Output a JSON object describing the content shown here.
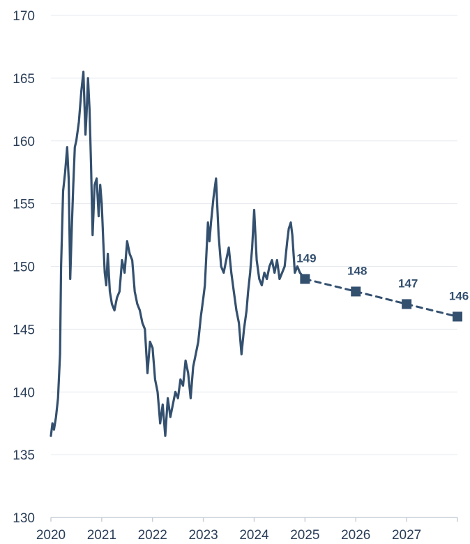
{
  "colors": {
    "series": "#34506f",
    "grid": "#e6eaef",
    "axis": "#c8cfd8",
    "text": "#2a3d57"
  },
  "chart_data": {
    "type": "line",
    "title": "",
    "xlabel": "",
    "ylabel": "",
    "xlim": [
      2020,
      2028
    ],
    "ylim": [
      130,
      170
    ],
    "yticks": [
      130,
      135,
      140,
      145,
      150,
      155,
      160,
      165,
      170
    ],
    "xtick_labels": [
      "2020",
      "2021",
      "2022",
      "2023",
      "2024",
      "2025",
      "2026",
      "2027"
    ],
    "grid": true,
    "legend": "none",
    "series": [
      {
        "style": "solid",
        "x": [
          2020.0,
          2020.03,
          2020.06,
          2020.1,
          2020.14,
          2020.18,
          2020.2,
          2020.24,
          2020.28,
          2020.32,
          2020.35,
          2020.38,
          2020.41,
          2020.44,
          2020.47,
          2020.5,
          2020.55,
          2020.6,
          2020.64,
          2020.68,
          2020.7,
          2020.73,
          2020.76,
          2020.79,
          2020.82,
          2020.86,
          2020.9,
          2020.94,
          2020.97,
          2021.0,
          2021.03,
          2021.06,
          2021.09,
          2021.12,
          2021.16,
          2021.2,
          2021.25,
          2021.3,
          2021.35,
          2021.4,
          2021.45,
          2021.5,
          2021.55,
          2021.6,
          2021.65,
          2021.7,
          2021.75,
          2021.8,
          2021.85,
          2021.9,
          2021.95,
          2022.0,
          2022.05,
          2022.1,
          2022.15,
          2022.2,
          2022.25,
          2022.3,
          2022.35,
          2022.4,
          2022.45,
          2022.5,
          2022.55,
          2022.6,
          2022.65,
          2022.7,
          2022.75,
          2022.8,
          2022.85,
          2022.9,
          2022.95,
          2023.0,
          2023.03,
          2023.06,
          2023.09,
          2023.12,
          2023.15,
          2023.2,
          2023.25,
          2023.3,
          2023.35,
          2023.4,
          2023.45,
          2023.5,
          2023.55,
          2023.6,
          2023.65,
          2023.7,
          2023.75,
          2023.8,
          2023.85,
          2023.88,
          2023.92,
          2023.96,
          2024.0,
          2024.05,
          2024.1,
          2024.15,
          2024.2,
          2024.25,
          2024.3,
          2024.35,
          2024.4,
          2024.45,
          2024.5,
          2024.55,
          2024.6,
          2024.65,
          2024.68,
          2024.72,
          2024.75,
          2024.8,
          2024.85,
          2024.9,
          2025.0
        ],
        "values": [
          136.5,
          137.5,
          137.0,
          138.0,
          139.5,
          143.0,
          150.0,
          156.0,
          157.5,
          159.5,
          157.0,
          149.0,
          153.0,
          156.5,
          159.5,
          160.0,
          161.5,
          164.0,
          165.5,
          160.5,
          162.0,
          165.0,
          162.5,
          158.0,
          152.5,
          156.5,
          157.0,
          154.0,
          156.5,
          155.0,
          152.0,
          149.5,
          148.5,
          151.0,
          148.0,
          147.0,
          146.5,
          147.5,
          148.0,
          150.5,
          149.5,
          152.0,
          151.0,
          150.5,
          148.0,
          147.0,
          146.5,
          145.5,
          145.0,
          141.5,
          144.0,
          143.5,
          141.0,
          140.0,
          137.5,
          139.0,
          136.5,
          139.5,
          138.0,
          139.0,
          140.0,
          139.5,
          141.0,
          140.5,
          142.5,
          141.5,
          139.5,
          142.0,
          143.0,
          144.0,
          146.0,
          147.5,
          148.5,
          151.0,
          153.5,
          152.0,
          153.5,
          155.5,
          157.0,
          152.5,
          150.0,
          149.5,
          150.5,
          151.5,
          149.5,
          148.0,
          146.5,
          145.5,
          143.0,
          145.0,
          146.5,
          148.0,
          149.5,
          151.5,
          154.5,
          150.5,
          149.0,
          148.5,
          149.5,
          149.0,
          150.0,
          150.5,
          149.5,
          150.5,
          149.0,
          149.5,
          150.0,
          152.0,
          153.0,
          153.5,
          152.5,
          149.5,
          150.0,
          149.5,
          149.0
        ]
      },
      {
        "style": "dashed",
        "marker": "square",
        "x": [
          2025,
          2026,
          2027,
          2028
        ],
        "values": [
          149,
          148,
          147,
          146
        ],
        "labels": [
          "149",
          "148",
          "147",
          "146"
        ]
      }
    ]
  }
}
